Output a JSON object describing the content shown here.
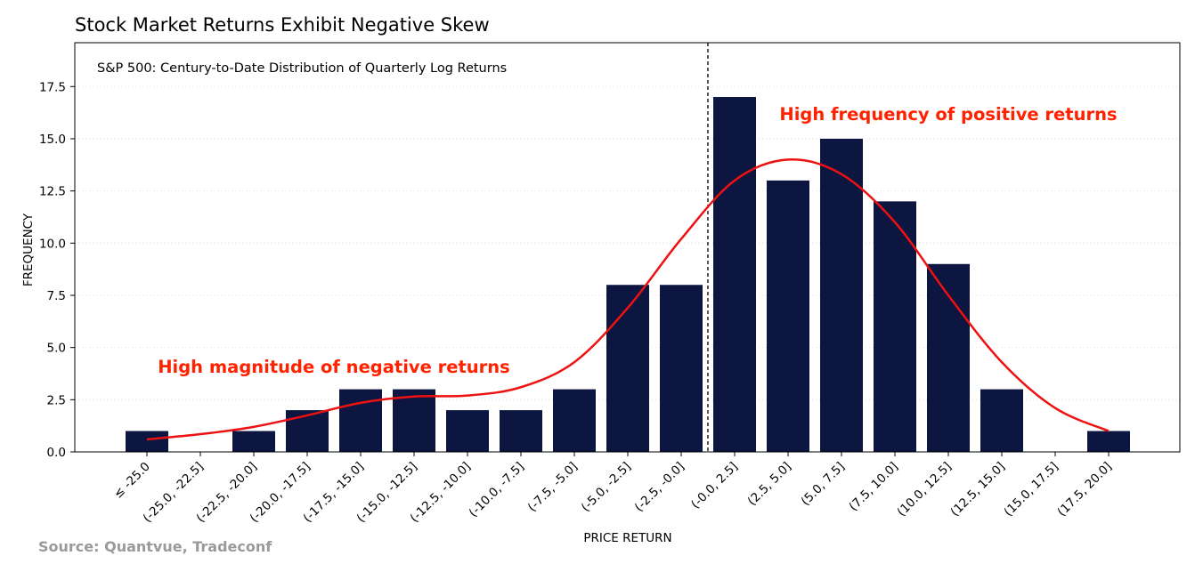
{
  "chart_data": {
    "type": "bar",
    "title": "Stock Market Returns Exhibit Negative Skew",
    "subtitle": "S&P 500: Century-to-Date Distribution of Quarterly Log Returns",
    "xlabel": "PRICE RETURN",
    "ylabel": "FREQUENCY",
    "ylim": [
      0,
      19.6
    ],
    "yticks": [
      "0.0",
      "2.5",
      "5.0",
      "7.5",
      "10.0",
      "12.5",
      "15.0",
      "17.5"
    ],
    "categories": [
      "≤ -25.0",
      "(-25.0, -22.5]",
      "(-22.5, -20.0]",
      "(-20.0, -17.5]",
      "(-17.5, -15.0]",
      "(-15.0, -12.5]",
      "(-12.5, -10.0]",
      "(-10.0, -7.5]",
      "(-7.5, -5.0]",
      "(-5.0, -2.5]",
      "(-2.5, -0.0]",
      "(-0.0, 2.5]",
      "(2.5, 5.0]",
      "(5.0, 7.5]",
      "(7.5, 10.0]",
      "(10.0, 12.5]",
      "(12.5, 15.0]",
      "(15.0, 17.5]",
      "(17.5, 20.0]"
    ],
    "values": [
      1,
      0,
      1,
      2,
      3,
      3,
      2,
      2,
      3,
      8,
      8,
      17,
      13,
      15,
      12,
      9,
      3,
      0,
      1
    ],
    "kde_curve": {
      "x_index": [
        0,
        1,
        2,
        3,
        4,
        5,
        6,
        7,
        8,
        9,
        10,
        11,
        12,
        13,
        14,
        15,
        16,
        17,
        18
      ],
      "y": [
        0.6,
        0.85,
        1.2,
        1.75,
        2.35,
        2.65,
        2.7,
        3.1,
        4.3,
        6.9,
        10.2,
        13.0,
        14.0,
        13.3,
        11.0,
        7.5,
        4.3,
        2.1,
        1.0
      ]
    },
    "vline_at_index": 10.5,
    "grid": true,
    "bar_color": "#0d1640",
    "curve_color": "#ee1111",
    "annotation_color": "#ff2200",
    "annotations": [
      {
        "text": "High magnitude of negative returns",
        "x_index": 3.5,
        "y": 4.1
      },
      {
        "text": "High frequency of positive returns",
        "x_index": 15.0,
        "y": 16.2
      }
    ],
    "source": "Source: Quantvue, Tradeconf"
  }
}
